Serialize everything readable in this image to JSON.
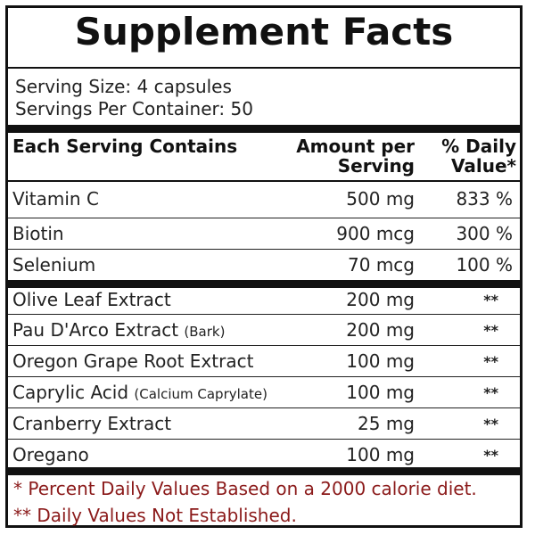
{
  "title": "Supplement Facts",
  "serving_size": "Serving Size: 4 capsules",
  "servings_per_container": "Servings Per Container: 50",
  "headers": {
    "contains": "Each Serving Contains",
    "amount_line1": "Amount per",
    "amount_line2": "Serving",
    "dv_line1": "% Daily",
    "dv_line2": "Value*"
  },
  "vitamins": [
    {
      "name": "Vitamin C",
      "note": "",
      "amount": "500 mg",
      "dv": "833 %"
    },
    {
      "name": "Biotin",
      "note": "",
      "amount": "900 mcg",
      "dv": "300 %"
    },
    {
      "name": "Selenium",
      "note": "",
      "amount": "70 mcg",
      "dv": "100 %"
    }
  ],
  "extracts": [
    {
      "name": "Olive Leaf Extract",
      "note": "",
      "amount": "200 mg",
      "dv": "**"
    },
    {
      "name": "Pau D'Arco Extract",
      "note": "(Bark)",
      "amount": "200 mg",
      "dv": "**"
    },
    {
      "name": "Oregon Grape Root Extract",
      "note": "",
      "amount": "100 mg",
      "dv": "**"
    },
    {
      "name": "Caprylic Acid",
      "note": "(Calcium Caprylate)",
      "amount": "100 mg",
      "dv": "**"
    },
    {
      "name": "Cranberry Extract",
      "note": "",
      "amount": "25 mg",
      "dv": "**"
    },
    {
      "name": "Oregano",
      "note": "",
      "amount": "100 mg",
      "dv": "**"
    }
  ],
  "footnotes": [
    "* Percent Daily Values Based on a 2000 calorie diet.",
    "** Daily Values Not Established."
  ],
  "colors": {
    "footnote": "#8b1a1a",
    "rules": "#111111"
  }
}
